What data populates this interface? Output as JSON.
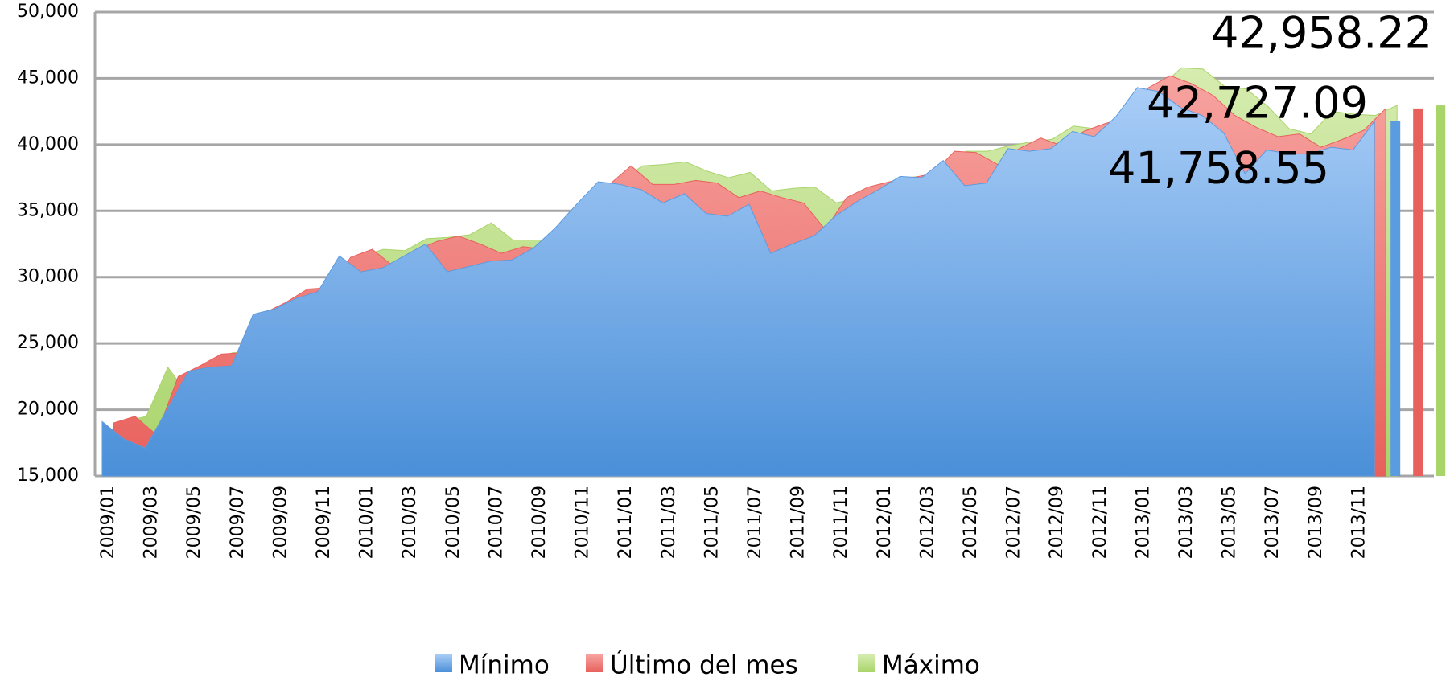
{
  "chart_data": {
    "type": "area",
    "categories": [
      "2009/01",
      null,
      "2009/03",
      null,
      "2009/05",
      null,
      "2009/07",
      null,
      "2009/09",
      null,
      "2009/11",
      null,
      "2010/01",
      null,
      "2010/03",
      null,
      "2010/05",
      null,
      "2010/07",
      null,
      "2010/09",
      null,
      "2010/11",
      null,
      "2011/01",
      null,
      "2011/03",
      null,
      "2011/05",
      null,
      "2011/07",
      null,
      "2011/09",
      null,
      "2011/11",
      null,
      "2012/01",
      null,
      "2012/03",
      null,
      "2012/05",
      null,
      "2012/07",
      null,
      "2012/09",
      null,
      "2012/11",
      null,
      "2013/01",
      null,
      "2013/03",
      null,
      "2013/05",
      null,
      "2013/07",
      null,
      "2013/09",
      null,
      "2013/11",
      null
    ],
    "series": [
      {
        "name": "Máximo",
        "color": "#a9d46a",
        "values": [
          19100,
          19500,
          23200,
          21000,
          23300,
          24300,
          24300,
          27300,
          28100,
          29100,
          29800,
          31600,
          32100,
          32000,
          32900,
          33000,
          33200,
          34100,
          32800,
          32800,
          32800,
          33800,
          35500,
          37200,
          38400,
          38500,
          38700,
          38000,
          37500,
          37900,
          36500,
          36700,
          36800,
          35600,
          36000,
          36900,
          37500,
          37600,
          37800,
          39500,
          39500,
          39900,
          40200,
          40400,
          41400,
          41200,
          41700,
          42200,
          44300,
          45800,
          45700,
          44400,
          44200,
          42900,
          41200,
          40800,
          42500,
          42300,
          42200,
          42958.22
        ],
        "value_labels": [
          null,
          null,
          null,
          null,
          null,
          null,
          null,
          null,
          null,
          null,
          null,
          null,
          null,
          null,
          null,
          null,
          null,
          null,
          null,
          null,
          null,
          null,
          null,
          null,
          null,
          null,
          null,
          null,
          null,
          null,
          null,
          null,
          null,
          null,
          null,
          null,
          null,
          null,
          null,
          null,
          null,
          null,
          null,
          null,
          null,
          null,
          null,
          null,
          null,
          null,
          null,
          null,
          null,
          null,
          null,
          null,
          null,
          null,
          null,
          "42,958.22"
        ]
      },
      {
        "name": "Último del mes",
        "color": "#e8605c",
        "values": [
          19000,
          19500,
          18100,
          22500,
          23300,
          24200,
          24300,
          27300,
          28100,
          29100,
          29200,
          31500,
          32100,
          30800,
          32000,
          32700,
          33100,
          32500,
          31800,
          32300,
          32100,
          33700,
          35500,
          37000,
          38400,
          37000,
          37000,
          37300,
          37100,
          36000,
          36500,
          36000,
          35600,
          33600,
          36000,
          36800,
          37200,
          37500,
          37800,
          39500,
          39400,
          38500,
          39700,
          40500,
          39900,
          41000,
          41600,
          42000,
          44300,
          45200,
          44600,
          43700,
          42200,
          41300,
          40600,
          40800,
          39800,
          40400,
          41100,
          42727.09
        ],
        "value_labels": [
          null,
          null,
          null,
          null,
          null,
          null,
          null,
          null,
          null,
          null,
          null,
          null,
          null,
          null,
          null,
          null,
          null,
          null,
          null,
          null,
          null,
          null,
          null,
          null,
          null,
          null,
          null,
          null,
          null,
          null,
          null,
          null,
          null,
          null,
          null,
          null,
          null,
          null,
          null,
          null,
          null,
          null,
          null,
          null,
          null,
          null,
          null,
          null,
          null,
          null,
          null,
          null,
          null,
          null,
          null,
          null,
          null,
          null,
          null,
          "42,727.09"
        ]
      },
      {
        "name": "Mínimo",
        "color": "#5b9be0",
        "values": [
          19100,
          17800,
          17100,
          20000,
          22900,
          23200,
          23300,
          27200,
          27600,
          28400,
          28900,
          31600,
          30400,
          30700,
          31600,
          32500,
          30400,
          30800,
          31200,
          31300,
          32200,
          33700,
          35500,
          37200,
          37000,
          36600,
          35600,
          36300,
          34800,
          34600,
          35500,
          31800,
          32500,
          33100,
          34600,
          35700,
          36600,
          37600,
          37500,
          38800,
          36900,
          37100,
          39700,
          39500,
          39700,
          41000,
          40600,
          42100,
          44300,
          44000,
          42800,
          42200,
          40900,
          37800,
          39600,
          39300,
          39300,
          39800,
          39600,
          41758.55
        ],
        "value_labels": [
          null,
          null,
          null,
          null,
          null,
          null,
          null,
          null,
          null,
          null,
          null,
          null,
          null,
          null,
          null,
          null,
          null,
          null,
          null,
          null,
          null,
          null,
          null,
          null,
          null,
          null,
          null,
          null,
          null,
          null,
          null,
          null,
          null,
          null,
          null,
          null,
          null,
          null,
          null,
          null,
          null,
          null,
          null,
          null,
          null,
          null,
          null,
          null,
          null,
          null,
          null,
          null,
          null,
          null,
          null,
          null,
          null,
          null,
          null,
          "41,758.55"
        ]
      }
    ],
    "ylim": [
      15000,
      50000
    ],
    "yticks": [
      {
        "value": 15000,
        "label": "15,000"
      },
      {
        "value": 20000,
        "label": "20,000"
      },
      {
        "value": 25000,
        "label": "25,000"
      },
      {
        "value": 30000,
        "label": "30,000"
      },
      {
        "value": 35000,
        "label": "35,000"
      },
      {
        "value": 40000,
        "label": "40,000"
      },
      {
        "value": 45000,
        "label": "45,000"
      },
      {
        "value": 50000,
        "label": "50,000"
      }
    ],
    "grid": true,
    "legend": "bottom"
  }
}
